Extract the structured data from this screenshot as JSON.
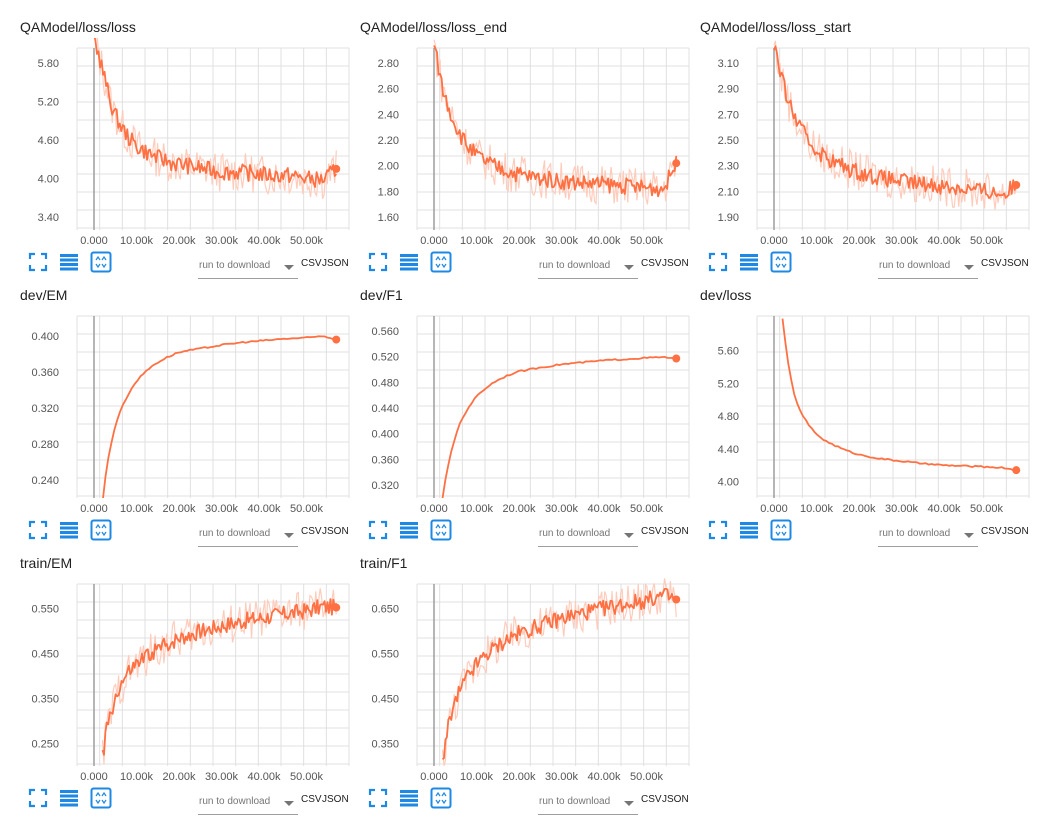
{
  "toolbar_labels": {
    "run_select": "run to download",
    "csv": "CSV",
    "json": "JSON"
  },
  "colors": {
    "series": "#ff7043",
    "series_light": "#ffccbc",
    "grid": "#e0e0e0",
    "origin_line": "#9e9e9e",
    "icon_blue": "#1e88e5"
  },
  "icons": [
    "expand-icon",
    "list-icon",
    "fit-domain-icon"
  ],
  "cards": [
    {
      "title": "QAModel/loss/loss",
      "x_ticks": [
        "0.000",
        "10.00k",
        "20.00k",
        "30.00k",
        "40.00k",
        "50.00k"
      ],
      "y_ticks": [
        "3.40",
        "4.00",
        "4.60",
        "5.20",
        "5.80"
      ],
      "chart_data": {
        "type": "line",
        "x": [
          0,
          2000,
          4000,
          6000,
          8000,
          10000,
          14000,
          18000,
          22000,
          26000,
          30000,
          34000,
          38000,
          42000,
          46000,
          50000,
          54000,
          57000
        ],
        "values": [
          6.2,
          5.7,
          5.15,
          4.85,
          4.65,
          4.5,
          4.35,
          4.25,
          4.2,
          4.15,
          4.1,
          4.1,
          4.08,
          4.05,
          4.05,
          4.0,
          3.98,
          4.15
        ],
        "ylim": [
          3.2,
          6.0
        ],
        "xlim": [
          -4000,
          60000
        ],
        "noisy": true
      }
    },
    {
      "title": "QAModel/loss/loss_end",
      "x_ticks": [
        "0.000",
        "10.00k",
        "20.00k",
        "30.00k",
        "40.00k",
        "50.00k"
      ],
      "y_ticks": [
        "1.60",
        "1.80",
        "2.00",
        "2.20",
        "2.40",
        "2.60",
        "2.80"
      ],
      "chart_data": {
        "type": "line",
        "x": [
          0,
          2000,
          4000,
          6000,
          8000,
          10000,
          14000,
          18000,
          22000,
          26000,
          30000,
          34000,
          38000,
          42000,
          46000,
          50000,
          54000,
          57000
        ],
        "values": [
          2.95,
          2.6,
          2.4,
          2.25,
          2.15,
          2.08,
          2.0,
          1.95,
          1.92,
          1.9,
          1.88,
          1.87,
          1.86,
          1.85,
          1.84,
          1.83,
          1.82,
          2.02
        ],
        "ylim": [
          1.5,
          2.9
        ],
        "xlim": [
          -4000,
          60000
        ],
        "noisy": true
      }
    },
    {
      "title": "QAModel/loss/loss_start",
      "x_ticks": [
        "0.000",
        "10.00k",
        "20.00k",
        "30.00k",
        "40.00k",
        "50.00k"
      ],
      "y_ticks": [
        "1.90",
        "2.10",
        "2.30",
        "2.50",
        "2.70",
        "2.90",
        "3.10"
      ],
      "chart_data": {
        "type": "line",
        "x": [
          0,
          2000,
          4000,
          6000,
          8000,
          10000,
          14000,
          18000,
          22000,
          26000,
          30000,
          34000,
          38000,
          42000,
          46000,
          50000,
          54000,
          57000
        ],
        "values": [
          3.25,
          2.95,
          2.75,
          2.6,
          2.5,
          2.42,
          2.33,
          2.27,
          2.23,
          2.2,
          2.18,
          2.16,
          2.15,
          2.13,
          2.12,
          2.1,
          2.08,
          2.15
        ],
        "ylim": [
          1.8,
          3.2
        ],
        "xlim": [
          -4000,
          60000
        ],
        "noisy": true
      }
    },
    {
      "title": "dev/EM",
      "x_ticks": [
        "0.000",
        "10.00k",
        "20.00k",
        "30.00k",
        "40.00k",
        "50.00k"
      ],
      "y_ticks": [
        "0.240",
        "0.280",
        "0.320",
        "0.360",
        "0.400"
      ],
      "chart_data": {
        "type": "line",
        "x": [
          2000,
          3000,
          4000,
          5000,
          6000,
          8000,
          10000,
          12000,
          14000,
          17000,
          20000,
          25000,
          30000,
          35000,
          40000,
          45000,
          50000,
          54000,
          57000
        ],
        "values": [
          0.215,
          0.255,
          0.28,
          0.3,
          0.315,
          0.335,
          0.35,
          0.36,
          0.368,
          0.376,
          0.382,
          0.386,
          0.39,
          0.393,
          0.395,
          0.397,
          0.398,
          0.4,
          0.396
        ],
        "ylim": [
          0.22,
          0.42
        ],
        "xlim": [
          -4000,
          60000
        ],
        "noisy": false
      }
    },
    {
      "title": "dev/F1",
      "x_ticks": [
        "0.000",
        "10.00k",
        "20.00k",
        "30.00k",
        "40.00k",
        "50.00k"
      ],
      "y_ticks": [
        "0.320",
        "0.360",
        "0.400",
        "0.440",
        "0.480",
        "0.520",
        "0.560"
      ],
      "chart_data": {
        "type": "line",
        "x": [
          2000,
          3000,
          4000,
          5000,
          6000,
          8000,
          10000,
          12000,
          14000,
          17000,
          20000,
          25000,
          30000,
          35000,
          40000,
          45000,
          50000,
          54000,
          57000
        ],
        "values": [
          0.3,
          0.34,
          0.37,
          0.395,
          0.415,
          0.44,
          0.458,
          0.47,
          0.48,
          0.49,
          0.497,
          0.503,
          0.508,
          0.511,
          0.514,
          0.516,
          0.518,
          0.519,
          0.517
        ],
        "ylim": [
          0.3,
          0.58
        ],
        "xlim": [
          -4000,
          60000
        ],
        "noisy": false
      }
    },
    {
      "title": "dev/loss",
      "x_ticks": [
        "0.000",
        "10.00k",
        "20.00k",
        "30.00k",
        "40.00k",
        "50.00k"
      ],
      "y_ticks": [
        "4.00",
        "4.40",
        "4.80",
        "5.20",
        "5.60"
      ],
      "chart_data": {
        "type": "line",
        "x": [
          2000,
          3000,
          4000,
          5000,
          6000,
          8000,
          10000,
          12000,
          14000,
          17000,
          20000,
          25000,
          30000,
          35000,
          40000,
          45000,
          50000,
          54000,
          57000
        ],
        "values": [
          6.0,
          5.55,
          5.25,
          5.02,
          4.88,
          4.7,
          4.58,
          4.5,
          4.45,
          4.38,
          4.33,
          4.28,
          4.25,
          4.22,
          4.2,
          4.19,
          4.18,
          4.17,
          4.14
        ],
        "ylim": [
          3.8,
          6.0
        ],
        "xlim": [
          -4000,
          60000
        ],
        "noisy": false
      }
    },
    {
      "title": "train/EM",
      "x_ticks": [
        "0.000",
        "10.00k",
        "20.00k",
        "30.00k",
        "40.00k",
        "50.00k"
      ],
      "y_ticks": [
        "0.250",
        "0.350",
        "0.450",
        "0.550"
      ],
      "chart_data": {
        "type": "line",
        "x": [
          2000,
          3000,
          4000,
          5000,
          6000,
          8000,
          10000,
          12000,
          14000,
          17000,
          20000,
          25000,
          30000,
          35000,
          40000,
          45000,
          50000,
          54000,
          57000
        ],
        "values": [
          0.22,
          0.28,
          0.32,
          0.35,
          0.375,
          0.405,
          0.425,
          0.44,
          0.455,
          0.47,
          0.485,
          0.5,
          0.512,
          0.522,
          0.53,
          0.538,
          0.545,
          0.555,
          0.552
        ],
        "ylim": [
          0.2,
          0.6
        ],
        "xlim": [
          -4000,
          60000
        ],
        "noisy": true
      }
    },
    {
      "title": "train/F1",
      "x_ticks": [
        "0.000",
        "10.00k",
        "20.00k",
        "30.00k",
        "40.00k",
        "50.00k"
      ],
      "y_ticks": [
        "0.350",
        "0.450",
        "0.550",
        "0.650"
      ],
      "chart_data": {
        "type": "line",
        "x": [
          2000,
          3000,
          4000,
          5000,
          6000,
          8000,
          10000,
          12000,
          14000,
          17000,
          20000,
          25000,
          30000,
          35000,
          40000,
          45000,
          50000,
          54000,
          57000
        ],
        "values": [
          0.31,
          0.37,
          0.41,
          0.44,
          0.465,
          0.5,
          0.525,
          0.545,
          0.56,
          0.58,
          0.595,
          0.612,
          0.628,
          0.64,
          0.65,
          0.66,
          0.668,
          0.68,
          0.67
        ],
        "ylim": [
          0.3,
          0.7
        ],
        "xlim": [
          -4000,
          60000
        ],
        "noisy": true
      }
    }
  ]
}
